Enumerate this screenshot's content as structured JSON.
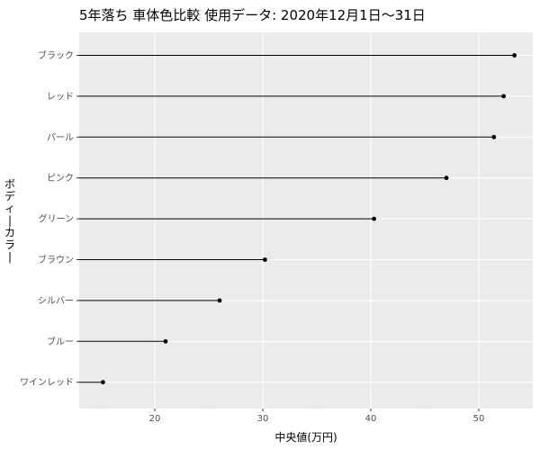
{
  "chart_data": {
    "type": "lollipop",
    "title": "5年落ち 車体色比較 使用データ: 2020年12月1日〜31日",
    "xlabel": "中央値(万円)",
    "ylabel": "ボディーカラー",
    "xlim": [
      13,
      55
    ],
    "xticks": [
      20,
      30,
      40,
      50
    ],
    "baseline": 13,
    "grid": true,
    "categories": [
      "ブラック",
      "レッド",
      "パール",
      "ピンク",
      "グリーン",
      "ブラウン",
      "シルバー",
      "ブルー",
      "ワインレッド"
    ],
    "values": [
      53.3,
      52.3,
      51.4,
      47,
      40.3,
      30.2,
      26,
      21,
      15.2
    ]
  }
}
